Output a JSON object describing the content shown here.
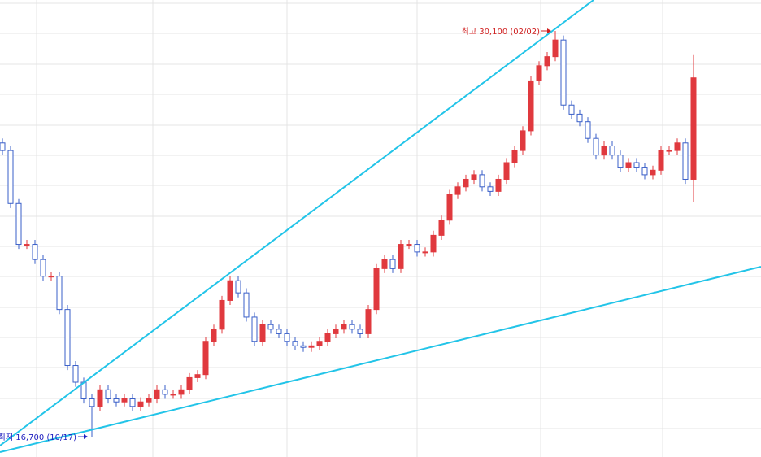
{
  "chart_data": {
    "type": "candlestick",
    "ylim": [
      16030,
      31120
    ],
    "up_color": "#e0393e",
    "down_color": "#3a5fc8",
    "open": [
      26400,
      26150,
      24400,
      23050,
      23050,
      22550,
      22000,
      22000,
      20900,
      19050,
      18500,
      17950,
      17700,
      18250,
      17950,
      17850,
      17950,
      17700,
      17850,
      17950,
      18250,
      18100,
      18100,
      18250,
      18650,
      18750,
      19850,
      20250,
      21200,
      21850,
      21450,
      20650,
      19850,
      20400,
      20250,
      20100,
      19850,
      19700,
      19650,
      19700,
      19850,
      20100,
      20250,
      20400,
      20250,
      20100,
      20900,
      22250,
      22550,
      22250,
      23050,
      23050,
      22800,
      22800,
      23350,
      23850,
      24700,
      24950,
      25200,
      25350,
      24950,
      24800,
      25200,
      25750,
      26150,
      26800,
      28450,
      28950,
      29250,
      29800,
      27650,
      27350,
      27100,
      26550,
      26000,
      26300,
      26000,
      25600,
      25750,
      25600,
      25350,
      25500,
      26150,
      26150,
      26400,
      25200
    ],
    "high": [
      26550,
      26300,
      24550,
      23200,
      23200,
      22700,
      22150,
      22150,
      21050,
      19200,
      18650,
      18100,
      18400,
      18400,
      18100,
      18100,
      18100,
      18000,
      18100,
      18400,
      18400,
      18250,
      18400,
      18800,
      18900,
      20000,
      20400,
      21350,
      22000,
      22000,
      21600,
      20800,
      20550,
      20550,
      20400,
      20250,
      20000,
      19850,
      19850,
      20000,
      20250,
      20400,
      20550,
      20550,
      20400,
      21050,
      22400,
      22700,
      22700,
      23200,
      23200,
      23200,
      22950,
      23500,
      24000,
      24850,
      25100,
      25350,
      25500,
      25500,
      25100,
      25350,
      25900,
      26300,
      26950,
      28600,
      29100,
      29400,
      30100,
      29950,
      27800,
      27500,
      27250,
      26700,
      26450,
      26450,
      26150,
      25900,
      25900,
      25750,
      25650,
      26300,
      26300,
      26550,
      26550,
      29300
    ],
    "low": [
      26000,
      24250,
      22900,
      22900,
      22400,
      21850,
      21850,
      20750,
      18900,
      18350,
      17800,
      16700,
      17550,
      17800,
      17700,
      17700,
      17550,
      17550,
      17700,
      17800,
      17950,
      17950,
      17950,
      18100,
      18500,
      18600,
      19700,
      20100,
      21050,
      21300,
      20500,
      19700,
      19700,
      20100,
      19950,
      19700,
      19550,
      19500,
      19500,
      19550,
      19700,
      19950,
      20100,
      20100,
      19950,
      19950,
      20750,
      22100,
      22100,
      22100,
      22900,
      22650,
      22650,
      22650,
      23200,
      23700,
      24550,
      24800,
      25050,
      24800,
      24650,
      24650,
      25050,
      25600,
      26000,
      26650,
      28300,
      28800,
      29100,
      27500,
      27200,
      26950,
      26400,
      25850,
      25850,
      25850,
      25450,
      25450,
      25450,
      25200,
      25200,
      25350,
      26000,
      26000,
      25050,
      24450
    ],
    "close": [
      26150,
      24400,
      23050,
      23050,
      22550,
      22000,
      22000,
      20900,
      19050,
      18500,
      17950,
      17700,
      18250,
      17950,
      17850,
      17950,
      17700,
      17850,
      17950,
      18250,
      18100,
      18100,
      18250,
      18650,
      18750,
      19850,
      20250,
      21200,
      21850,
      21450,
      20650,
      19850,
      20400,
      20250,
      20100,
      19850,
      19700,
      19650,
      19700,
      19850,
      20100,
      20250,
      20400,
      20250,
      20100,
      20900,
      22250,
      22550,
      22250,
      23050,
      23050,
      22800,
      22800,
      23350,
      23850,
      24700,
      24950,
      25200,
      25350,
      24950,
      24800,
      25200,
      25750,
      26150,
      26800,
      28450,
      28950,
      29250,
      29800,
      27650,
      27350,
      27100,
      26550,
      26000,
      26300,
      26000,
      25600,
      25750,
      25600,
      25350,
      25500,
      26150,
      26150,
      26400,
      25200,
      28550
    ],
    "annotations": [
      {
        "text": "최고 30,100 (02/02)",
        "index": 68,
        "price": 30100,
        "color": "#d02020"
      },
      {
        "text": "최저 16,700 (10/17)",
        "index": 11,
        "price": 16700,
        "color": "#2020c0"
      }
    ]
  }
}
